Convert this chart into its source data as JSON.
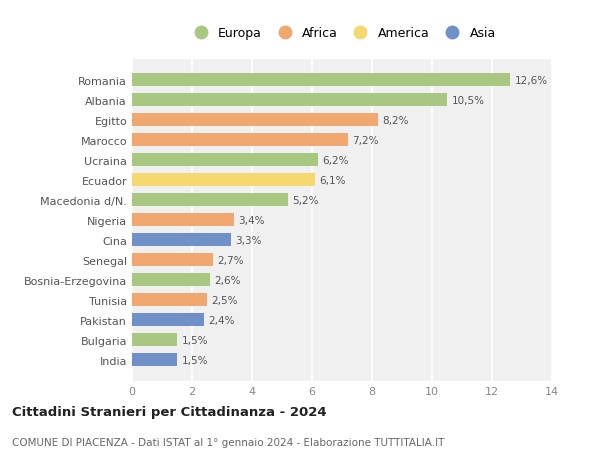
{
  "countries": [
    "Romania",
    "Albania",
    "Egitto",
    "Marocco",
    "Ucraina",
    "Ecuador",
    "Macedonia d/N.",
    "Nigeria",
    "Cina",
    "Senegal",
    "Bosnia-Erzegovina",
    "Tunisia",
    "Pakistan",
    "Bulgaria",
    "India"
  ],
  "values": [
    12.6,
    10.5,
    8.2,
    7.2,
    6.2,
    6.1,
    5.2,
    3.4,
    3.3,
    2.7,
    2.6,
    2.5,
    2.4,
    1.5,
    1.5
  ],
  "labels": [
    "12,6%",
    "10,5%",
    "8,2%",
    "7,2%",
    "6,2%",
    "6,1%",
    "5,2%",
    "3,4%",
    "3,3%",
    "2,7%",
    "2,6%",
    "2,5%",
    "2,4%",
    "1,5%",
    "1,5%"
  ],
  "colors": [
    "#a8c882",
    "#a8c882",
    "#f0a870",
    "#f0a870",
    "#a8c882",
    "#f5d870",
    "#a8c882",
    "#f0a870",
    "#7090c8",
    "#f0a870",
    "#a8c882",
    "#f0a870",
    "#7090c8",
    "#a8c882",
    "#7090c8"
  ],
  "legend_labels": [
    "Europa",
    "Africa",
    "America",
    "Asia"
  ],
  "legend_colors": [
    "#a8c882",
    "#f0a870",
    "#f5d870",
    "#7090c8"
  ],
  "title": "Cittadini Stranieri per Cittadinanza - 2024",
  "subtitle": "COMUNE DI PIACENZA - Dati ISTAT al 1° gennaio 2024 - Elaborazione TUTTITALIA.IT",
  "xlim": [
    0,
    14
  ],
  "xticks": [
    0,
    2,
    4,
    6,
    8,
    10,
    12,
    14
  ],
  "bg_color": "#ffffff",
  "plot_bg": "#f0f0f0",
  "grid_color": "#ffffff",
  "bar_height": 0.65
}
